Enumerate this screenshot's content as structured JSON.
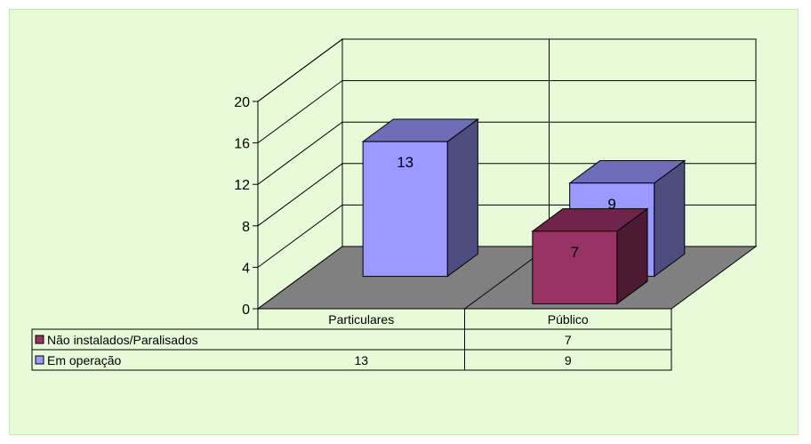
{
  "chart_data": {
    "type": "bar",
    "categories": [
      "Particulares",
      "Público"
    ],
    "series": [
      {
        "name": "Não instalados/Paralisados",
        "values": [
          null,
          7
        ],
        "color": "#993366"
      },
      {
        "name": "Em operação",
        "values": [
          13,
          9
        ],
        "color": "#9999ff"
      }
    ],
    "ylim": [
      0,
      20
    ],
    "yticks": [
      0,
      4,
      8,
      12,
      16,
      20
    ],
    "grid": true,
    "legend": "data-table",
    "data_table": {
      "headers": [
        "Particulares",
        "Público"
      ],
      "rows": [
        {
          "series": "Não instalados/Paralisados",
          "cells": [
            "",
            "7"
          ]
        },
        {
          "series": "Em operação",
          "cells": [
            "13",
            "9"
          ]
        }
      ]
    }
  }
}
